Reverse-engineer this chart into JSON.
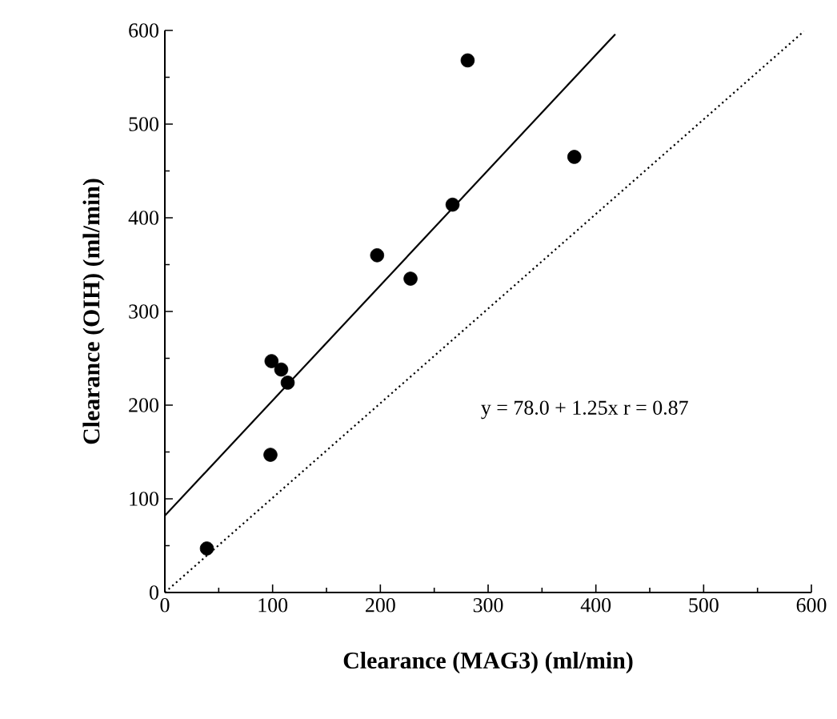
{
  "chart_data": {
    "type": "scatter",
    "xlabel": "Clearance (MAG3)  (ml/min)",
    "ylabel": "Clearance  (OIH)    (ml/min)",
    "xlim": [
      0,
      600
    ],
    "ylim": [
      0,
      600
    ],
    "xticks": [
      0,
      100,
      200,
      300,
      400,
      500,
      600
    ],
    "yticks": [
      0,
      100,
      200,
      300,
      400,
      500,
      600
    ],
    "annotations": [
      "y = 78.0 + 1.25x   r = 0.87"
    ],
    "series": [
      {
        "marker": "circle",
        "color": "#000000",
        "x": [
          39,
          98,
          99,
          108,
          114,
          197,
          228,
          267,
          281,
          380
        ],
        "values": [
          47,
          147,
          247,
          238,
          224,
          360,
          335,
          414,
          568,
          465
        ]
      },
      {
        "type": "line",
        "marker": "none",
        "line_style": "solid",
        "color": "#000000",
        "x": [
          0,
          418
        ],
        "values": [
          82,
          596
        ]
      },
      {
        "type": "line",
        "marker": "none",
        "line_style": "dotted",
        "color": "#000000",
        "x": [
          0,
          593
        ],
        "values": [
          0,
          599
        ]
      }
    ]
  }
}
